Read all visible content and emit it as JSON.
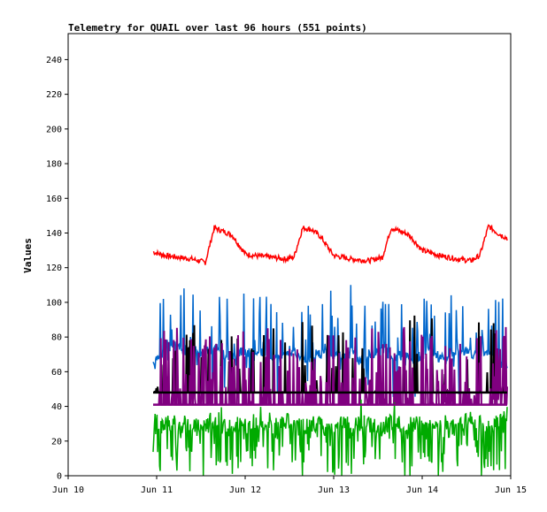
{
  "chart_data": {
    "type": "line",
    "title": "Telemetry for QUAIL over last 96 hours (551 points)",
    "xlabel": "",
    "ylabel": "Values",
    "x_ticks": [
      "Jun 10",
      "Jun 11",
      "Jun 12",
      "Jun 13",
      "Jun 14",
      "Jun 15"
    ],
    "xlim": [
      "Jun 10",
      "Jun 15"
    ],
    "ylim": [
      0,
      255
    ],
    "y_ticks": [
      0,
      20,
      40,
      60,
      80,
      100,
      120,
      140,
      160,
      180,
      200,
      220,
      240
    ],
    "grid": false,
    "legend": "none",
    "series": [
      {
        "color": "#ff0000",
        "x": [
          10.96,
          11.1,
          11.25,
          11.4,
          11.55,
          11.65,
          11.75,
          11.85,
          12.0,
          12.1,
          12.3,
          12.45,
          12.55,
          12.65,
          12.75,
          12.85,
          13.0,
          13.2,
          13.4,
          13.55,
          13.65,
          13.75,
          13.85,
          14.0,
          14.2,
          14.4,
          14.55,
          14.65,
          14.75,
          14.85,
          14.96
        ],
        "values": [
          129,
          127,
          126,
          125,
          123,
          143,
          141,
          139,
          128,
          127,
          126,
          125,
          126,
          143,
          142,
          138,
          127,
          125,
          124,
          126,
          143,
          141,
          139,
          130,
          127,
          125,
          124,
          127,
          144,
          140,
          137
        ]
      },
      {
        "color": "#0066cc",
        "x": [
          10.96,
          11.1,
          11.2,
          11.3,
          11.4,
          11.5,
          11.6,
          11.7,
          11.8,
          11.9,
          12.0,
          12.1,
          12.2,
          12.3,
          12.4,
          12.5,
          12.6,
          12.7,
          12.8,
          12.9,
          13.0,
          13.1,
          13.2,
          13.3,
          13.4,
          13.5,
          13.6,
          13.7,
          13.8,
          13.9,
          14.0,
          14.1,
          14.2,
          14.3,
          14.4,
          14.5,
          14.6,
          14.7,
          14.8,
          14.9,
          14.96
        ],
        "values": [
          65,
          73,
          75,
          72,
          74,
          70,
          73,
          71,
          68,
          70,
          72,
          69,
          71,
          70,
          68,
          72,
          70,
          67,
          69,
          71,
          70,
          68,
          72,
          66,
          70,
          72,
          71,
          69,
          70,
          67,
          70,
          72,
          68,
          70,
          71,
          73,
          69,
          72,
          68,
          64,
          65
        ]
      },
      {
        "color": "#000000",
        "x": [
          10.96,
          14.96
        ],
        "values": [
          48,
          48
        ]
      },
      {
        "color": "#800080",
        "x": [
          10.96,
          14.96
        ],
        "values": [
          41,
          41
        ]
      },
      {
        "color": "#00aa00",
        "x": [
          10.96,
          11.1,
          11.2,
          11.3,
          11.4,
          11.5,
          11.6,
          11.7,
          11.8,
          11.9,
          12.0,
          12.1,
          12.2,
          12.3,
          12.4,
          12.5,
          12.6,
          12.7,
          12.8,
          12.9,
          13.0,
          13.1,
          13.2,
          13.3,
          13.4,
          13.5,
          13.6,
          13.7,
          13.8,
          13.9,
          14.0,
          14.1,
          14.2,
          14.3,
          14.4,
          14.5,
          14.6,
          14.7,
          14.8,
          14.9,
          14.96
        ],
        "values": [
          29,
          28,
          31,
          27,
          30,
          28,
          32,
          29,
          27,
          30,
          28,
          31,
          29,
          27,
          30,
          32,
          28,
          29,
          31,
          27,
          30,
          29,
          28,
          31,
          30,
          27,
          29,
          32,
          28,
          30,
          29,
          31,
          27,
          30,
          28,
          32,
          29,
          30,
          28,
          33,
          35
        ]
      }
    ]
  }
}
